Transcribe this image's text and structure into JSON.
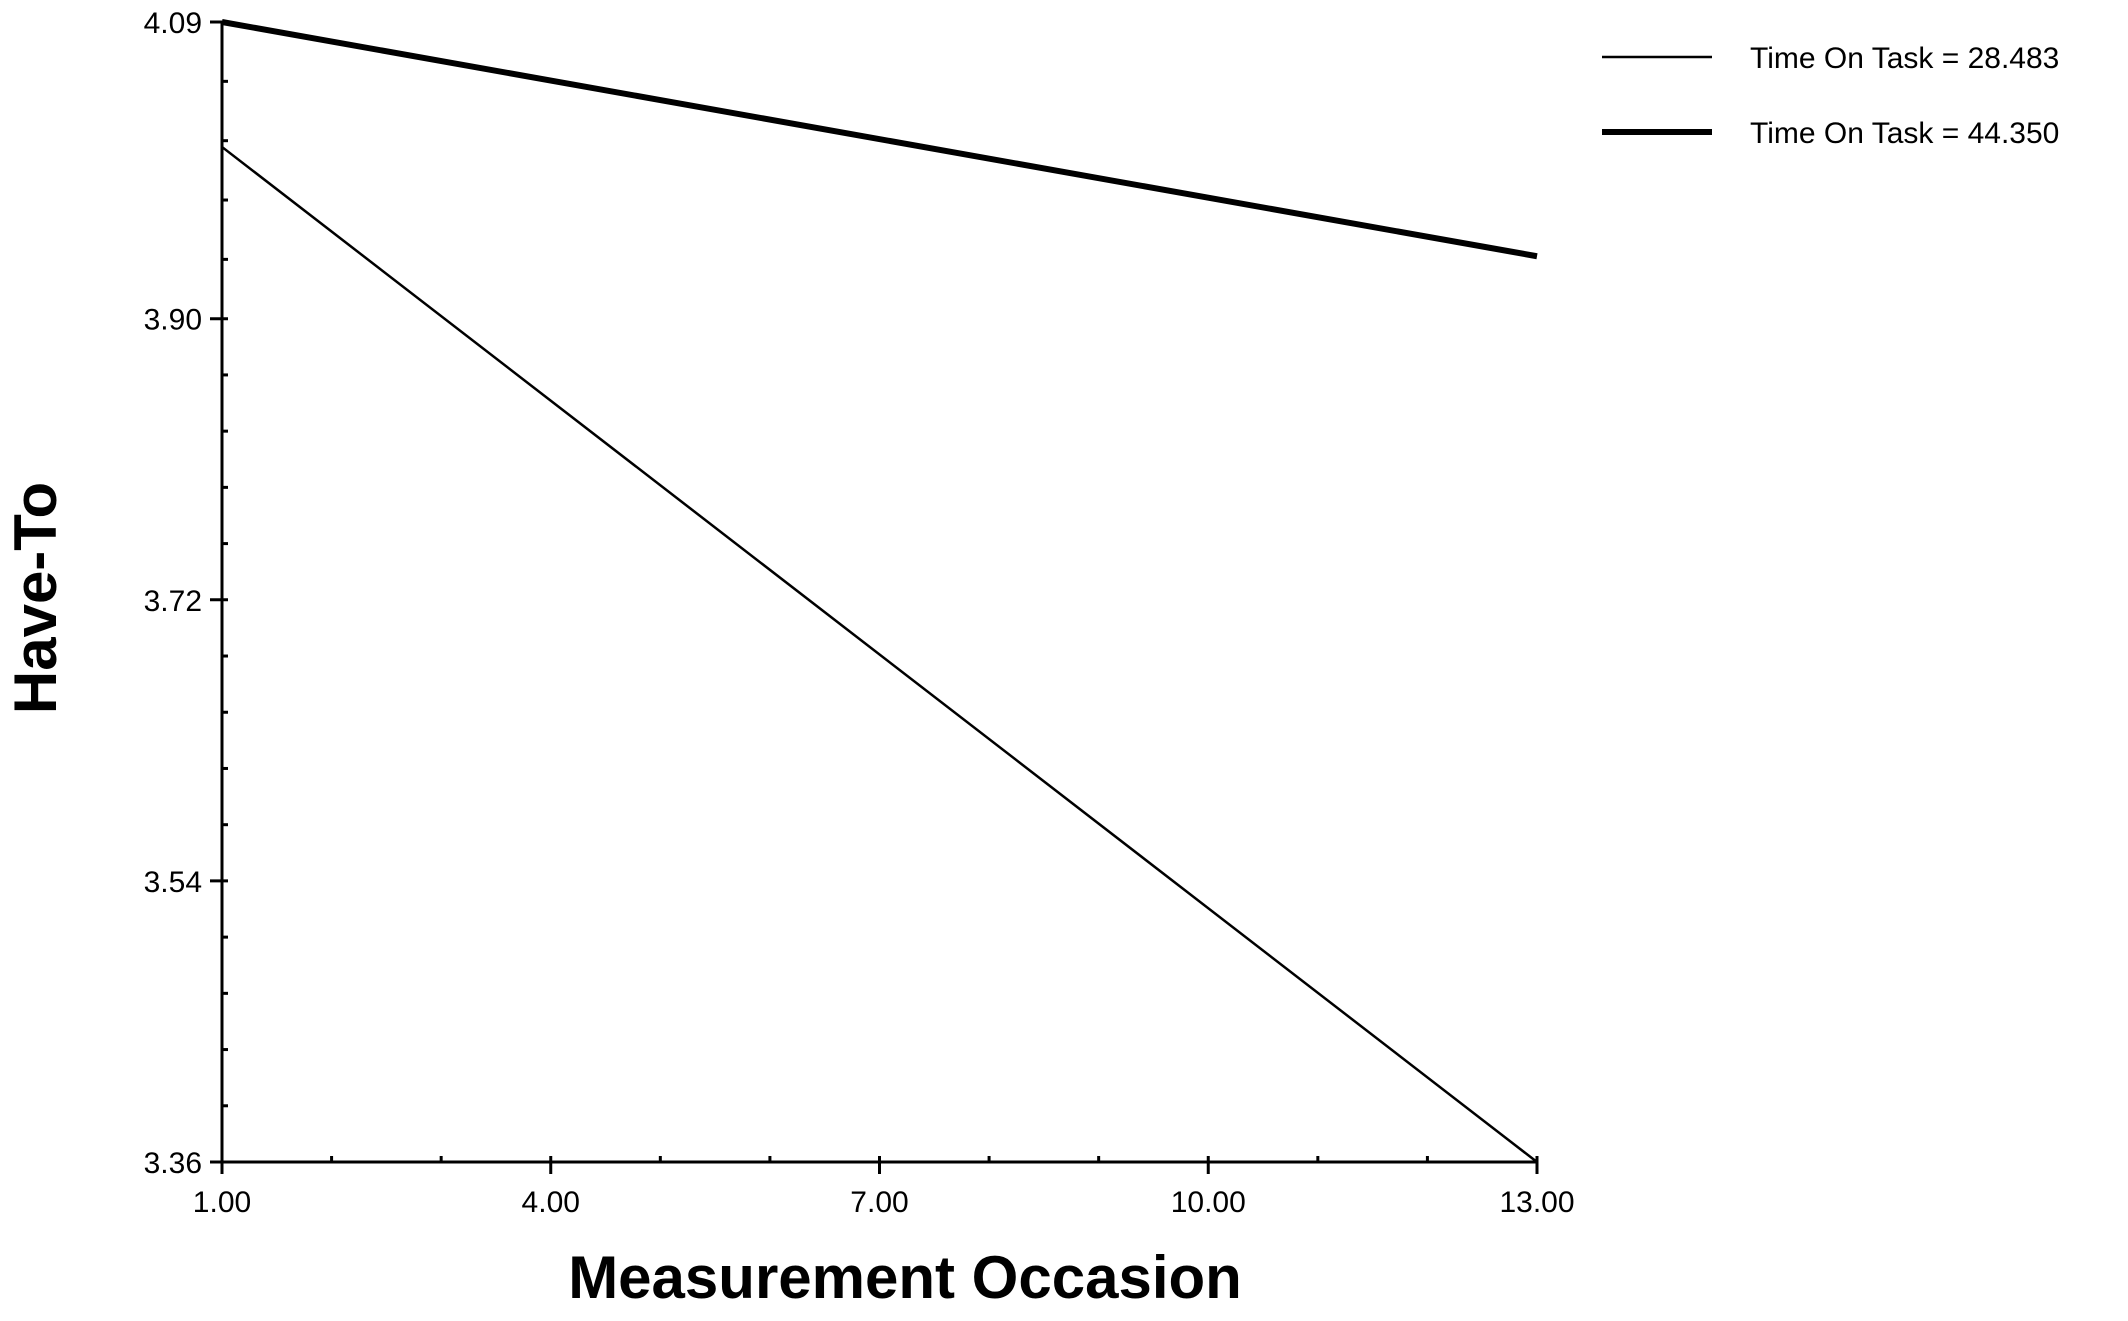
{
  "chart_data": {
    "type": "line",
    "title": "",
    "xlabel": "Measurement Occasion",
    "ylabel": "Have-To",
    "xlim": [
      1,
      13
    ],
    "ylim": [
      3.36,
      4.09
    ],
    "x_tick_labels": [
      "1.00",
      "4.00",
      "7.00",
      "10.00",
      "13.00"
    ],
    "x_tick_values": [
      1,
      4,
      7,
      10,
      13
    ],
    "y_tick_labels": [
      "3.36",
      "3.54",
      "3.72",
      "3.90",
      "4.09"
    ],
    "y_tick_values": [
      3.36,
      3.54,
      3.72,
      3.9,
      4.09
    ],
    "grid": false,
    "legend_position": "top-right",
    "series": [
      {
        "name": "Time On Task = 28.483",
        "x": [
          1,
          13
        ],
        "y": [
          4.01,
          3.36
        ],
        "style": "thin"
      },
      {
        "name": "Time On Task = 44.350",
        "x": [
          1,
          13
        ],
        "y": [
          4.09,
          3.94
        ],
        "style": "thick"
      }
    ],
    "colors": {
      "line": "#000000",
      "axis": "#000000",
      "background": "#ffffff"
    }
  }
}
